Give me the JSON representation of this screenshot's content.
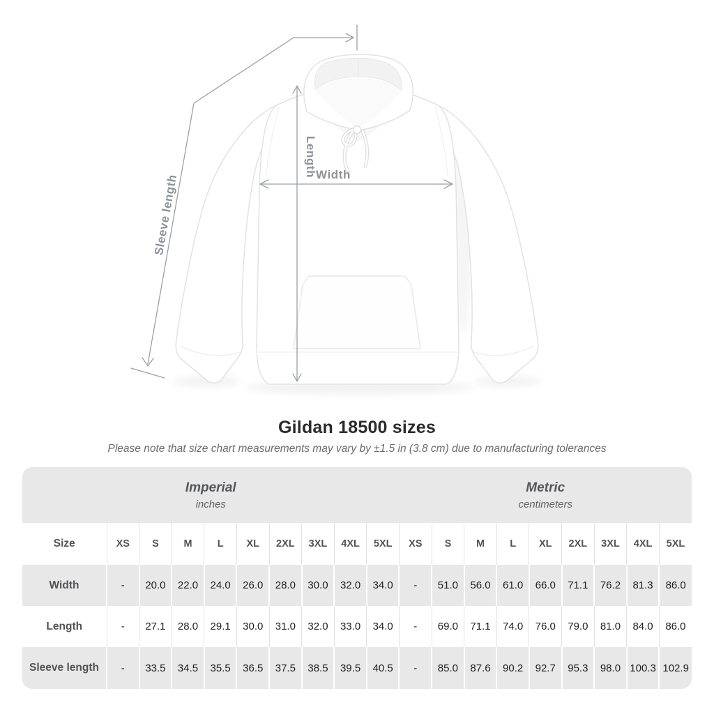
{
  "title": "Gildan 18500 sizes",
  "subtitle": "Please note that size chart measurements may vary by ±1.5 in (3.8 cm) due to manufacturing tolerances",
  "diagram_labels": {
    "sleeve_length": "Sleeve length",
    "length": "Length",
    "width": "Width"
  },
  "chart_data": {
    "type": "table",
    "title": "Gildan 18500 sizes",
    "column_groups": [
      {
        "label": "Imperial",
        "unit": "inches"
      },
      {
        "label": "Metric",
        "unit": "centimeters"
      }
    ],
    "size_column_header": "Size",
    "sizes": [
      "XS",
      "S",
      "M",
      "L",
      "XL",
      "2XL",
      "3XL",
      "4XL",
      "5XL"
    ],
    "rows": [
      {
        "label": "Width",
        "imperial": [
          "-",
          "20.0",
          "22.0",
          "24.0",
          "26.0",
          "28.0",
          "30.0",
          "32.0",
          "34.0"
        ],
        "metric": [
          "-",
          "51.0",
          "56.0",
          "61.0",
          "66.0",
          "71.1",
          "76.2",
          "81.3",
          "86.0"
        ]
      },
      {
        "label": "Length",
        "imperial": [
          "-",
          "27.1",
          "28.0",
          "29.1",
          "30.0",
          "31.0",
          "32.0",
          "33.0",
          "34.0"
        ],
        "metric": [
          "-",
          "69.0",
          "71.1",
          "74.0",
          "76.0",
          "79.0",
          "81.0",
          "84.0",
          "86.0"
        ]
      },
      {
        "label": "Sleeve length",
        "imperial": [
          "-",
          "33.5",
          "34.5",
          "35.5",
          "36.5",
          "37.5",
          "38.5",
          "39.5",
          "40.5"
        ],
        "metric": [
          "-",
          "85.0",
          "87.6",
          "90.2",
          "92.7",
          "95.3",
          "98.0",
          "100.3",
          "102.9"
        ]
      }
    ]
  },
  "colors": {
    "table_band": "#e8e8e8",
    "value_text": "#202124",
    "label_text": "#515357",
    "annotation": "#9aa0a4",
    "title_text": "#2b2b2b"
  }
}
